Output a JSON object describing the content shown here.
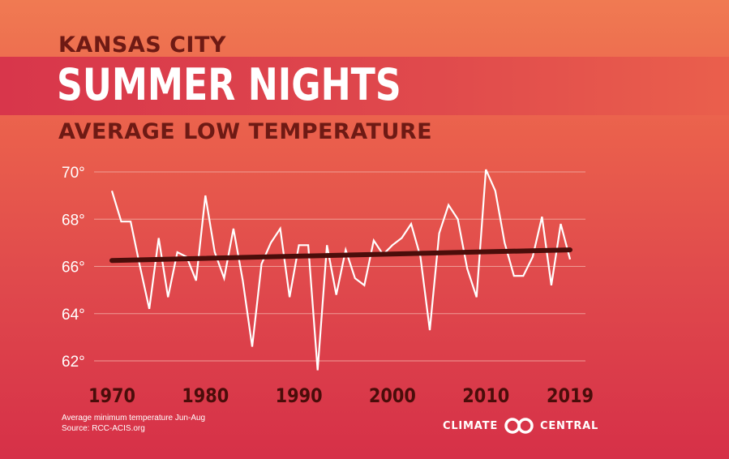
{
  "header": {
    "city": "KANSAS CITY",
    "title": "SUMMER NIGHTS",
    "subtitle": "AVERAGE LOW TEMPERATURE"
  },
  "footer": {
    "note": "Average minimum temperature Jun-Aug",
    "source": "Source: RCC-ACIS.org"
  },
  "logo": {
    "left_text": "CLIMATE",
    "right_text": "CENTRAL",
    "icon": "climate-central-rings-icon"
  },
  "colors": {
    "line": "#ffffff",
    "trend": "#4a0d0a",
    "grid": "#f4b0a8",
    "tick_label": "#ffffff",
    "year_label": "#4a0d0a"
  },
  "chart_data": {
    "type": "line",
    "title": "SUMMER NIGHTS",
    "xlabel": "",
    "ylabel": "",
    "x": [
      1970,
      1971,
      1972,
      1973,
      1974,
      1975,
      1976,
      1977,
      1978,
      1979,
      1980,
      1981,
      1982,
      1983,
      1984,
      1985,
      1986,
      1987,
      1988,
      1989,
      1990,
      1991,
      1992,
      1993,
      1994,
      1995,
      1996,
      1997,
      1998,
      1999,
      2000,
      2001,
      2002,
      2003,
      2004,
      2005,
      2006,
      2007,
      2008,
      2009,
      2010,
      2011,
      2012,
      2013,
      2014,
      2015,
      2016,
      2017,
      2018,
      2019
    ],
    "series": [
      {
        "name": "",
        "values": [
          69.2,
          67.9,
          67.9,
          66.0,
          64.2,
          67.2,
          64.7,
          66.6,
          66.4,
          65.4,
          69.0,
          66.6,
          65.5,
          67.6,
          65.4,
          62.6,
          66.1,
          67.0,
          67.6,
          64.7,
          66.9,
          66.9,
          61.6,
          66.9,
          64.8,
          66.7,
          65.5,
          65.2,
          67.1,
          66.5,
          66.9,
          67.2,
          67.8,
          66.4,
          63.3,
          67.4,
          68.6,
          68.0,
          65.9,
          64.7,
          70.1,
          69.2,
          67.0,
          65.6,
          65.6,
          66.4,
          68.1,
          65.2,
          67.8,
          66.3
        ]
      }
    ],
    "trend": {
      "x": [
        1970,
        2019
      ],
      "y": [
        66.25,
        66.7
      ]
    },
    "x_ticks": [
      "1970",
      "1980",
      "1990",
      "2000",
      "2010",
      "2019"
    ],
    "y_ticks": [
      "62°",
      "64°",
      "66°",
      "68°",
      "70°"
    ],
    "y_tick_values": [
      62,
      64,
      66,
      68,
      70
    ],
    "x_tick_values": [
      1970,
      1980,
      1990,
      2000,
      2010,
      2019
    ],
    "xlim": [
      1970,
      2019
    ],
    "ylim": [
      61.5,
      70.5
    ],
    "grid": true,
    "legend": "none"
  }
}
